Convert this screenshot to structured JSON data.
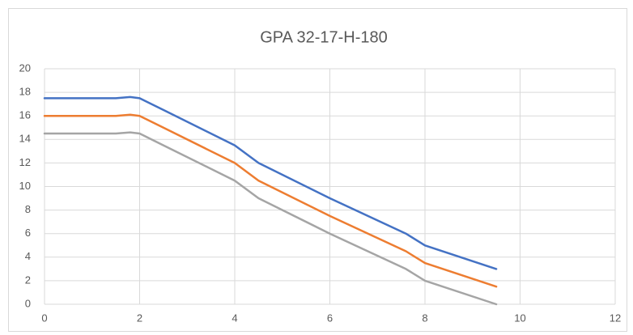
{
  "chart_data": {
    "type": "line",
    "title": "GPA 32-17-H-180",
    "x": [
      0,
      1.5,
      1.8,
      2,
      2.5,
      4,
      4.5,
      6,
      7.6,
      8,
      9.5
    ],
    "series": [
      {
        "color": "#4472c4",
        "values": [
          17.5,
          17.5,
          17.6,
          17.5,
          16.5,
          13.5,
          12,
          9,
          6,
          5,
          3
        ]
      },
      {
        "color": "#ed7d31",
        "values": [
          16,
          16,
          16.1,
          16,
          15,
          12,
          10.5,
          7.5,
          4.5,
          3.5,
          1.5
        ]
      },
      {
        "color": "#a5a5a5",
        "values": [
          14.5,
          14.5,
          14.6,
          14.5,
          13.5,
          10.5,
          9,
          6,
          3,
          2,
          0
        ]
      }
    ],
    "xlim": [
      0,
      12
    ],
    "xticks": [
      0,
      2,
      4,
      6,
      8,
      10,
      12
    ],
    "ylim": [
      0,
      20
    ],
    "yticks": [
      0,
      2,
      4,
      6,
      8,
      10,
      12,
      14,
      16,
      18,
      20
    ],
    "grid": true
  }
}
